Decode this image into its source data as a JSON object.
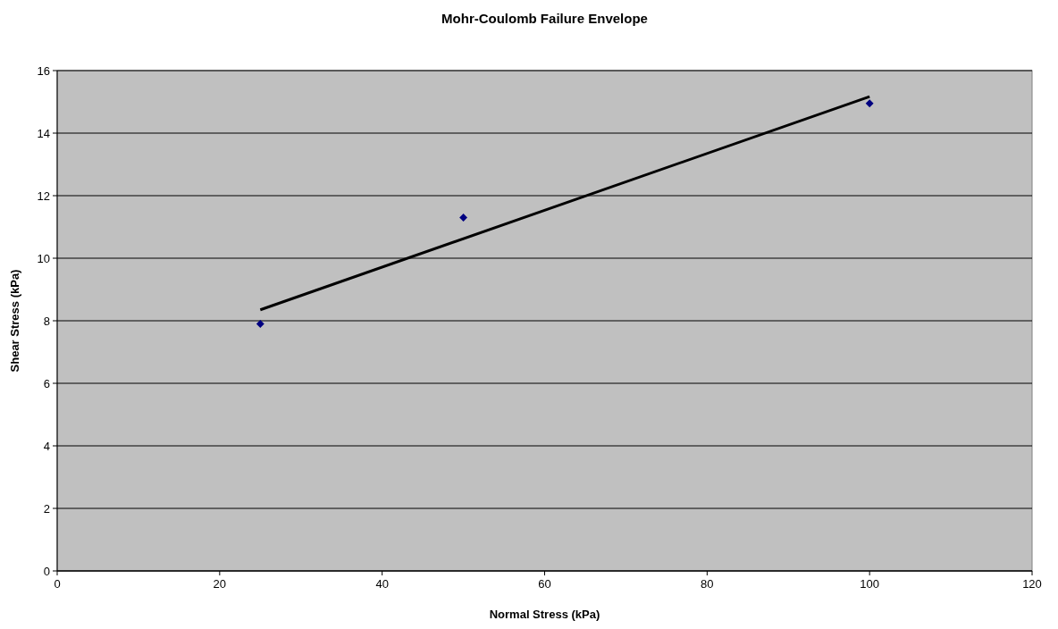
{
  "chart_data": {
    "type": "scatter",
    "title": "Mohr-Coulomb Failure Envelope",
    "xlabel": "Normal Stress (kPa)",
    "ylabel": "Shear Stress (kPa)",
    "series": [
      {
        "color": "#000080",
        "x": [
          25,
          50,
          100
        ],
        "values": [
          7.9,
          11.3,
          14.95
        ],
        "marker": "diamond"
      },
      {
        "type": "line",
        "color": "#000000",
        "x": [
          25,
          100
        ],
        "values": [
          8.35,
          15.17
        ],
        "marker": "none"
      }
    ],
    "xlim": [
      0,
      120
    ],
    "xticks": [
      0,
      20,
      40,
      60,
      80,
      100,
      120
    ],
    "ylim": [
      0,
      16
    ],
    "yticks": [
      0,
      2,
      4,
      6,
      8,
      10,
      12,
      14,
      16
    ],
    "grid": "y"
  }
}
